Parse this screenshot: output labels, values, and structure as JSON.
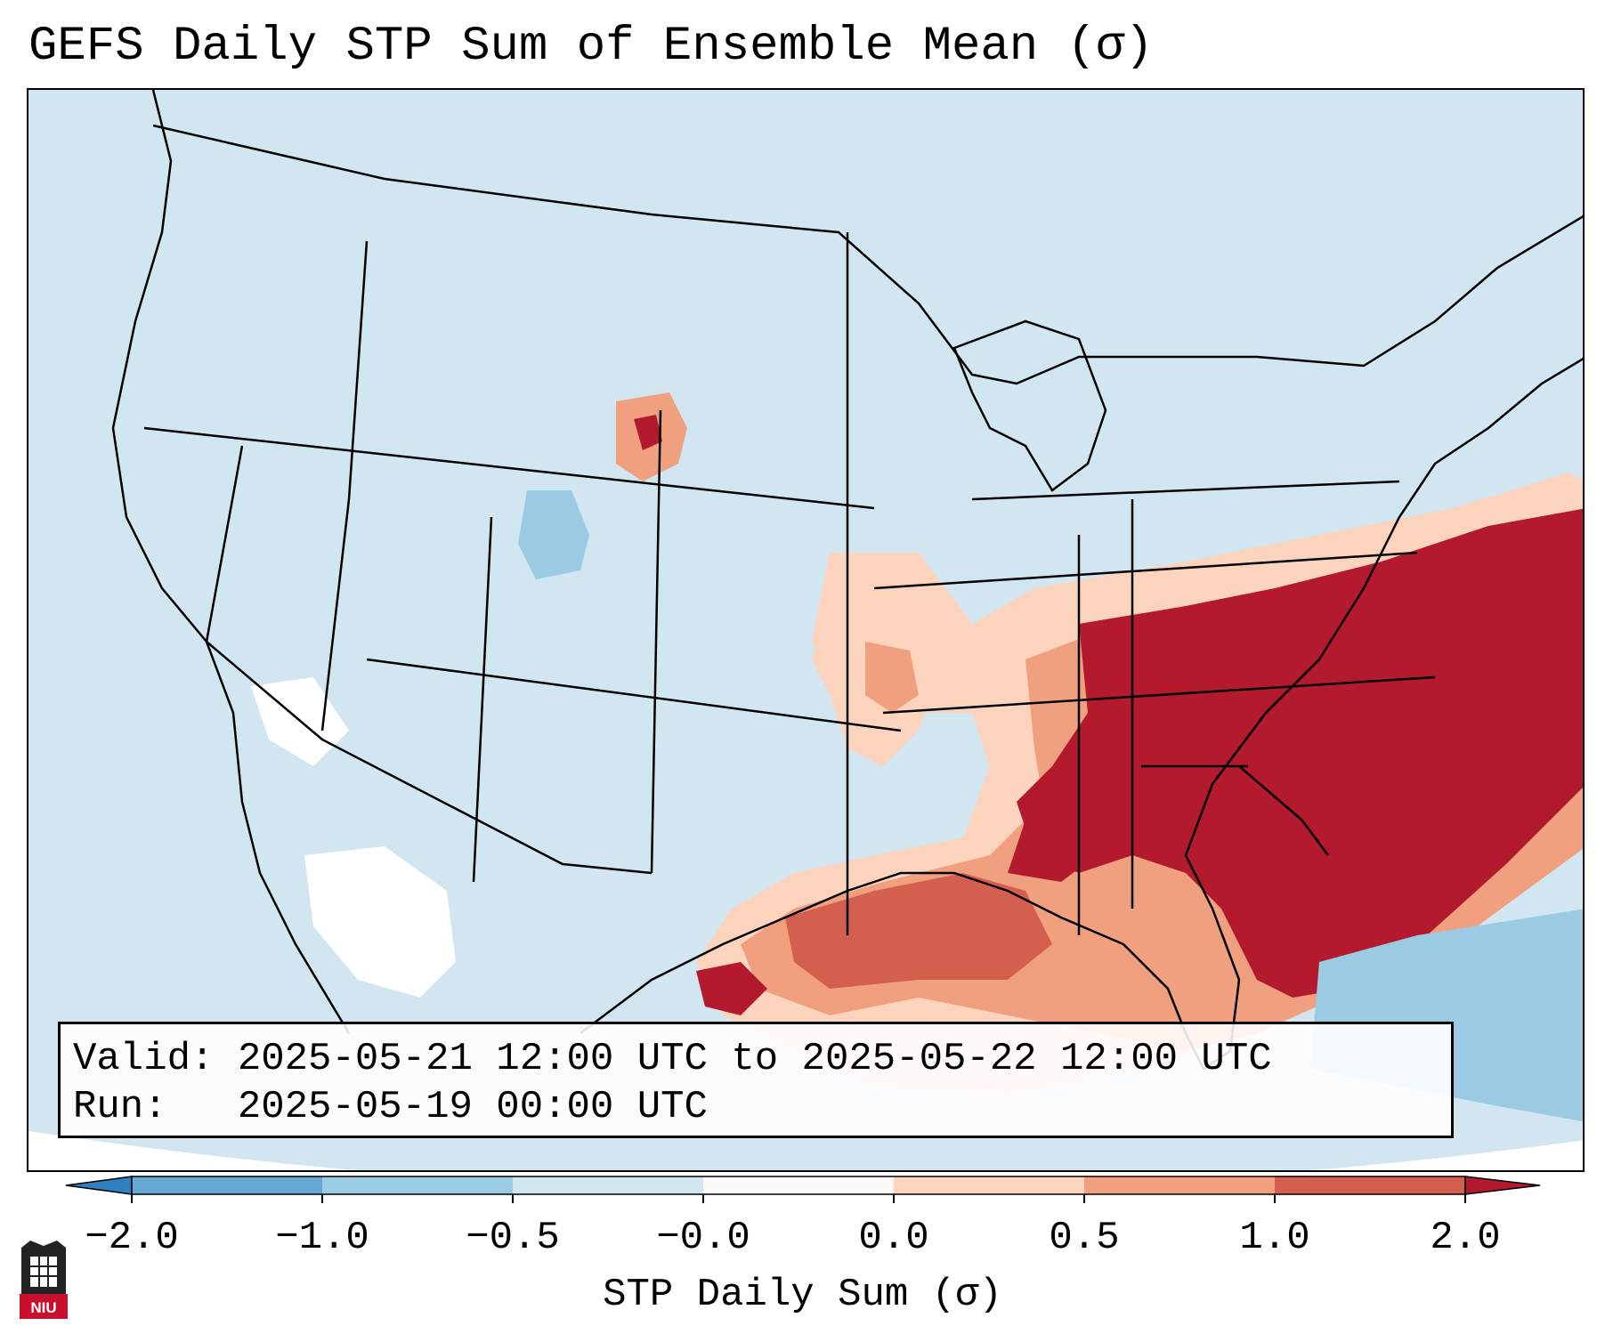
{
  "title": "GEFS Daily STP Sum of Ensemble Mean (σ)",
  "info": {
    "valid_label": "Valid:",
    "valid_value": "2025-05-21 12:00 UTC to 2025-05-22 12:00 UTC",
    "run_label": "Run:",
    "run_value": "2025-05-19 00:00 UTC"
  },
  "colorbar": {
    "label": "STP Daily Sum (σ)",
    "ticks": [
      "−2.0",
      "−1.0",
      "−0.5",
      "−0.0",
      "0.0",
      "0.5",
      "1.0",
      "2.0"
    ],
    "colors": [
      "#2f7fc1",
      "#67a9d5",
      "#9bcbe3",
      "#d2e6f1",
      "#fbf8f6",
      "#fcd4bd",
      "#f0a07f",
      "#d35f4e",
      "#b41a2e"
    ],
    "extend": "both"
  },
  "map_colors": {
    "background": "#d2e6f1",
    "ocean_edge": "#ffffff",
    "state_lines": "#000000",
    "strong_positive": "#b41a2e",
    "moderate_positive": "#d35f4e",
    "weak_positive": "#f0a07f",
    "slight_positive": "#fcd4bd",
    "weak_negative": "#9bcbe3",
    "neutral": "#ffffff"
  },
  "logo": {
    "text": "NIU",
    "icon": "niu-logo-icon"
  }
}
